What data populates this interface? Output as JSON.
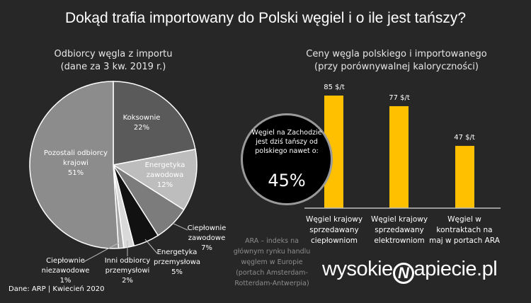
{
  "title": "Dokąd trafia importowany do Polski węgiel i o ile jest tańszy?",
  "chart_data": [
    {
      "type": "pie",
      "title": "Odbiorcy węgla z importu",
      "subtitle": "(dane za 3 kw. 2019 r.)",
      "slices": [
        {
          "label": "Koksownie",
          "value": 22,
          "text": "22%",
          "color": "#5a5a5a"
        },
        {
          "label": "Energetyka zawodowa",
          "value": 12,
          "text": "12%",
          "color": "#bdbdbd"
        },
        {
          "label": "Ciepłownie zawodowe",
          "value": 7,
          "text": "7%",
          "color": "#7c7c7c"
        },
        {
          "label": "Energetyka przemysłowa",
          "value": 5,
          "text": "5%",
          "color": "#111111"
        },
        {
          "label": "Inni odbiorcy przemysłowi",
          "value": 2,
          "text": "2%",
          "color": "#d9d9d9"
        },
        {
          "label": "Ciepłownie niezawodowe",
          "value": 1,
          "text": "1%",
          "color": "#a6a6a6"
        },
        {
          "label": "Pozostali odbiorcy krajowi",
          "value": 51,
          "text": "51%",
          "color": "#8c8c8c"
        }
      ]
    },
    {
      "type": "bar",
      "title": "Ceny węgla polskiego i importowanego",
      "subtitle": "(przy porównywalnej kaloryczności)",
      "categories": [
        "Węgiel krajowy sprzedawany ciepłowniom",
        "Węgiel krajowy sprzedawany elektrowniom",
        "Węgiel w kontraktach na maj w portach ARA"
      ],
      "values": [
        85,
        77,
        47
      ],
      "labels": [
        "85 $/t",
        "77 $/t",
        "47 $/t"
      ],
      "unit": "$/t",
      "color": "#ffc000",
      "ylim": [
        0,
        85
      ]
    }
  ],
  "callout": {
    "text": "Węgiel na Zachodzie jest dziś tańszy od polskiego nawet o:",
    "value": "45%"
  },
  "note": "ARA – indeks na głównym rynku handlu węglem w Europie (portach Amsterdam-Rotterdam-Antwerpia)",
  "source": "Dane: ARP | Kwiecień 2020",
  "logo": "wysokieNapiecie.pl"
}
